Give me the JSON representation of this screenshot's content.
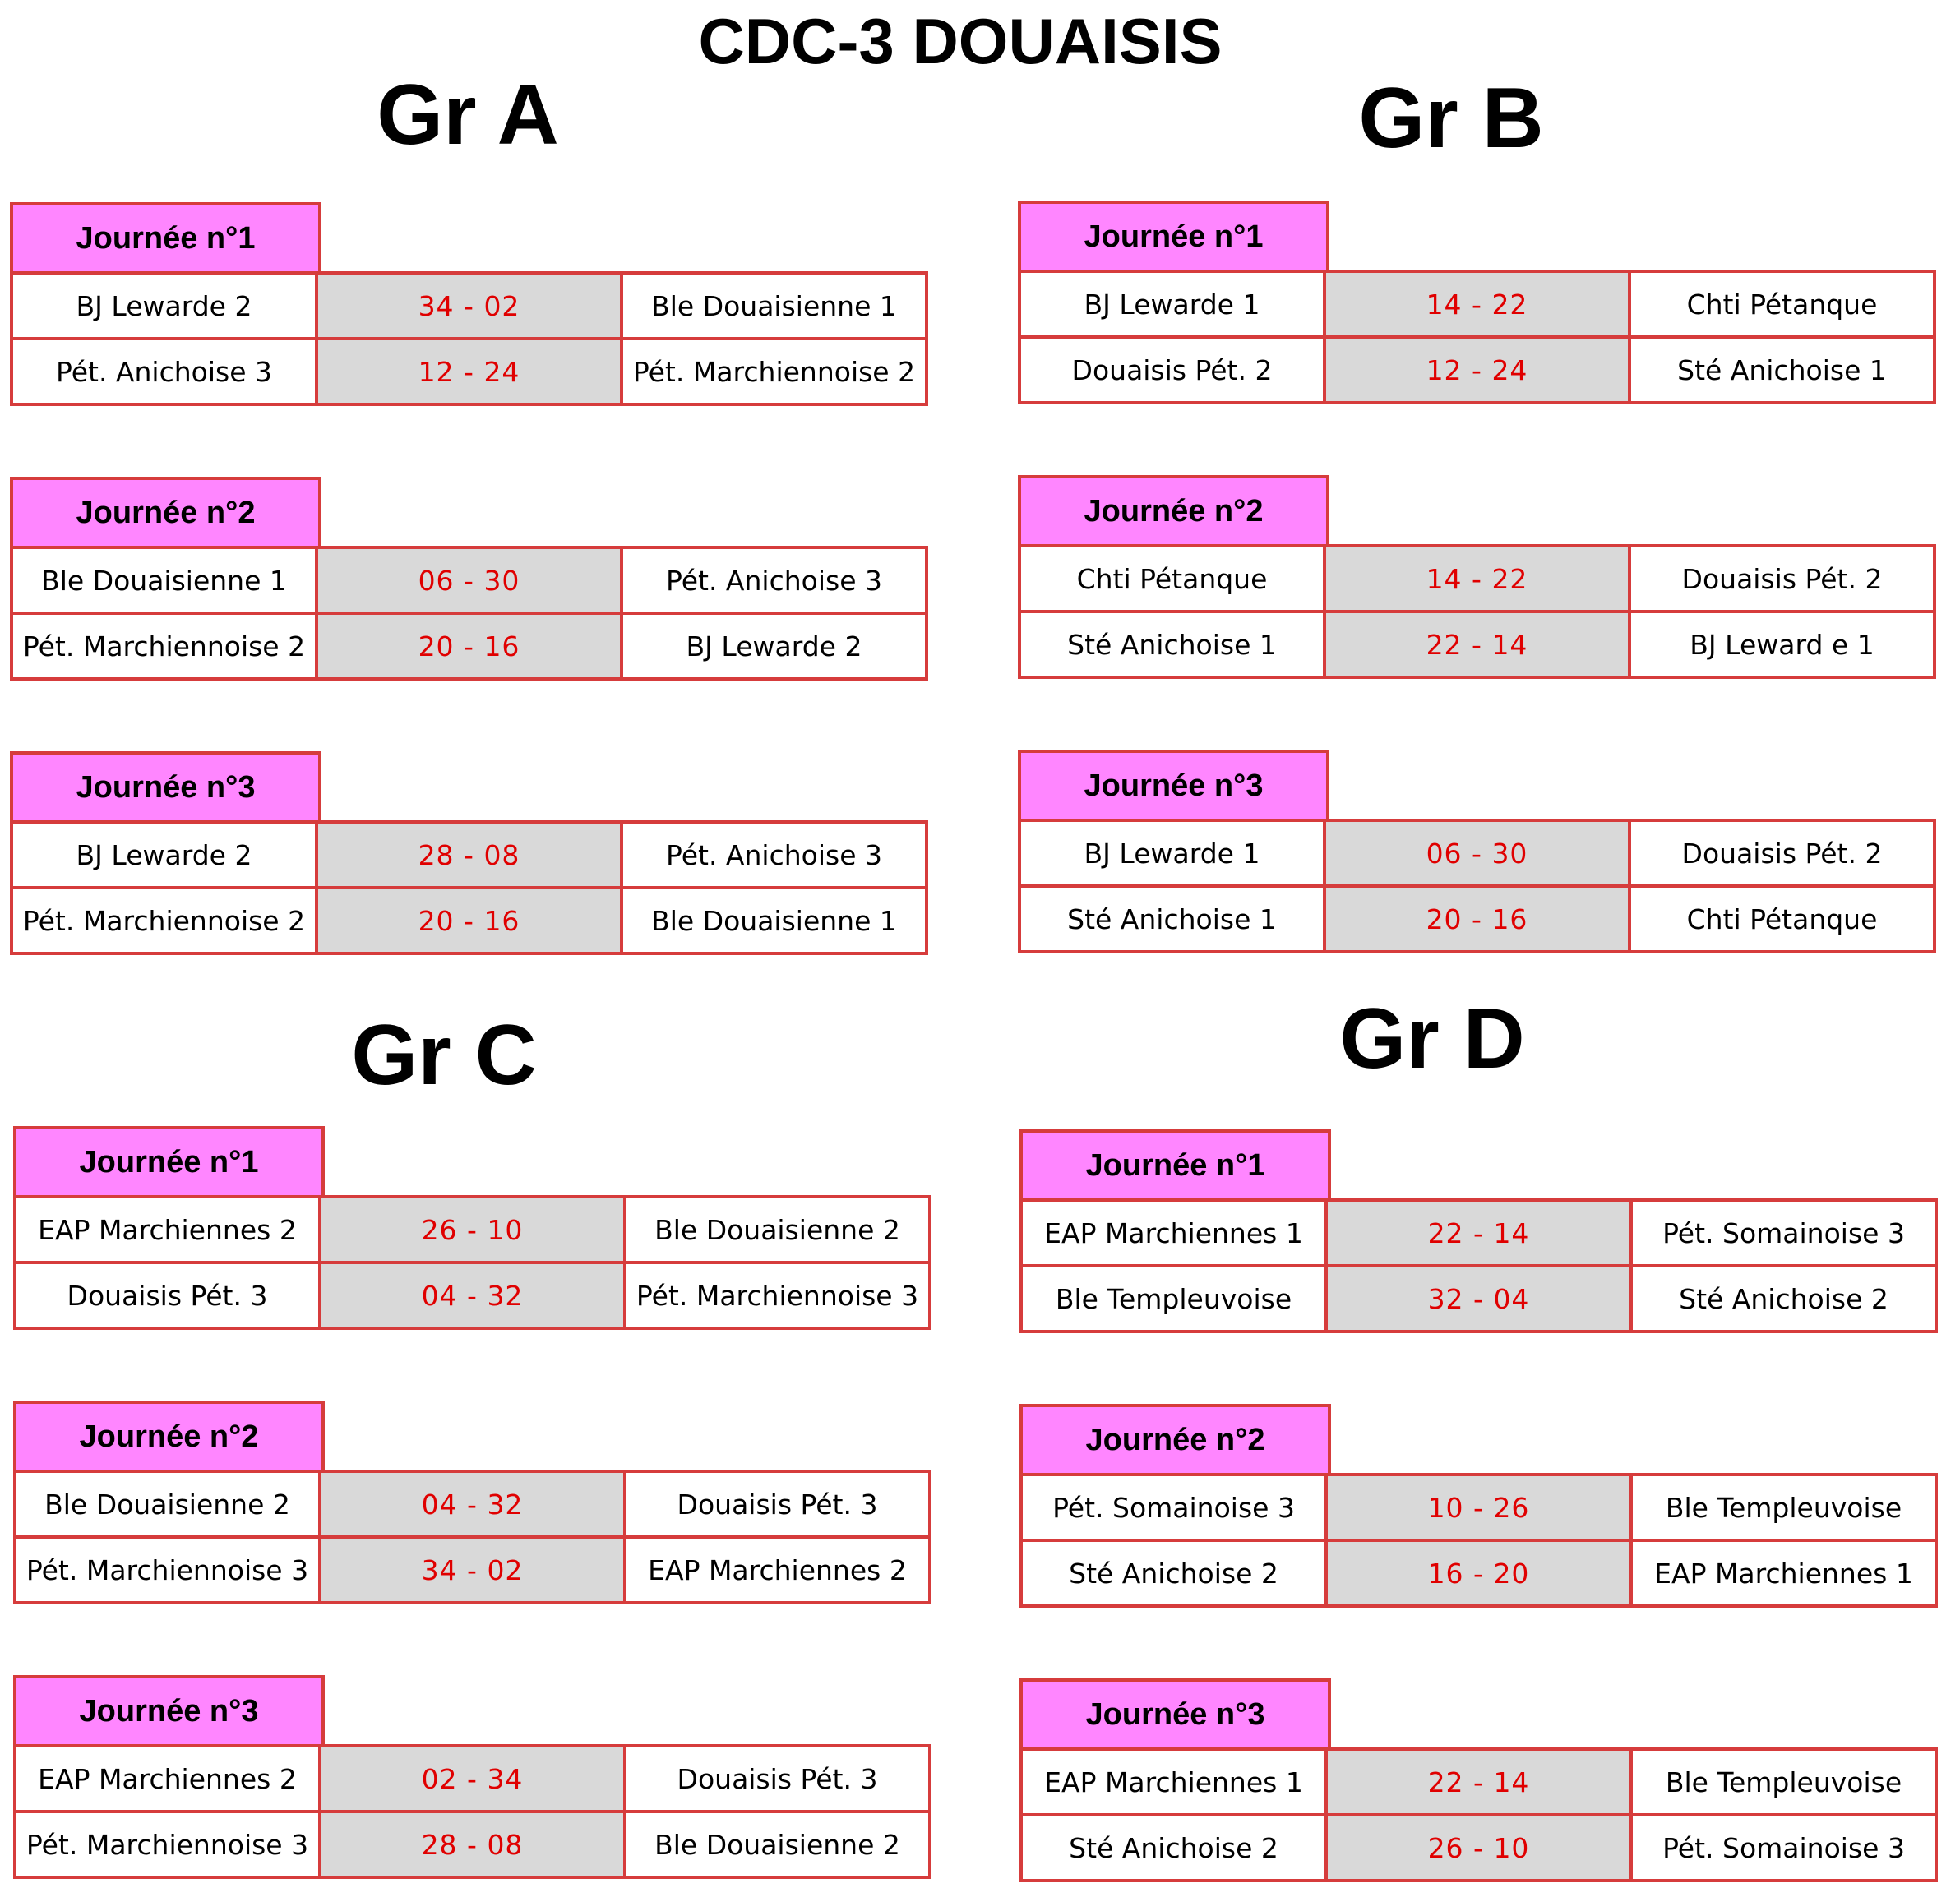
{
  "title": "CDC-3 DOUAISIS",
  "groups": [
    {
      "name": "Gr A",
      "days": [
        {
          "label": "Journée n°1",
          "matches": [
            {
              "home": "BJ Lewarde 2",
              "score": "34  -  02",
              "away": "Ble Douaisienne 1"
            },
            {
              "home": "Pét. Anichoise 3",
              "score": "12  -  24",
              "away": "Pét. Marchiennoise 2"
            }
          ]
        },
        {
          "label": "Journée n°2",
          "matches": [
            {
              "home": "Ble Douaisienne 1",
              "score": "06  -  30",
              "away": "Pét. Anichoise 3"
            },
            {
              "home": "Pét. Marchiennoise 2",
              "score": "20  -  16",
              "away": "BJ Lewarde 2"
            }
          ]
        },
        {
          "label": "Journée n°3",
          "matches": [
            {
              "home": "BJ Lewarde 2",
              "score": "28  -  08",
              "away": "Pét. Anichoise 3"
            },
            {
              "home": "Pét. Marchiennoise 2",
              "score": "20  -  16",
              "away": "Ble Douaisienne 1"
            }
          ]
        }
      ]
    },
    {
      "name": "Gr B",
      "days": [
        {
          "label": "Journée n°1",
          "matches": [
            {
              "home": "BJ Lewarde 1",
              "score": "14  -  22",
              "away": "Chti Pétanque"
            },
            {
              "home": "Douaisis Pét. 2",
              "score": "12  -  24",
              "away": "Sté Anichoise 1"
            }
          ]
        },
        {
          "label": "Journée n°2",
          "matches": [
            {
              "home": "Chti Pétanque",
              "score": "14  -  22",
              "away": "Douaisis Pét. 2"
            },
            {
              "home": "Sté Anichoise 1",
              "score": "22  -  14",
              "away": "BJ Leward e 1"
            }
          ]
        },
        {
          "label": "Journée n°3",
          "matches": [
            {
              "home": "BJ Lewarde 1",
              "score": "06  -  30",
              "away": "Douaisis Pét. 2"
            },
            {
              "home": "Sté Anichoise 1",
              "score": "20  -  16",
              "away": "Chti Pétanque"
            }
          ]
        }
      ]
    },
    {
      "name": "Gr C",
      "days": [
        {
          "label": "Journée n°1",
          "matches": [
            {
              "home": "EAP Marchiennes 2",
              "score": "26  -  10",
              "away": "Ble Douaisienne 2"
            },
            {
              "home": "Douaisis Pét. 3",
              "score": "04  -  32",
              "away": "Pét. Marchiennoise 3"
            }
          ]
        },
        {
          "label": "Journée n°2",
          "matches": [
            {
              "home": "Ble Douaisienne 2",
              "score": "04  -  32",
              "away": "Douaisis Pét. 3"
            },
            {
              "home": "Pét. Marchiennoise 3",
              "score": "34  -  02",
              "away": "EAP Marchiennes 2"
            }
          ]
        },
        {
          "label": "Journée n°3",
          "matches": [
            {
              "home": "EAP Marchiennes 2",
              "score": "02  -  34",
              "away": "Douaisis Pét. 3"
            },
            {
              "home": "Pét. Marchiennoise 3",
              "score": "28  -  08",
              "away": "Ble Douaisienne 2"
            }
          ]
        }
      ]
    },
    {
      "name": "Gr D",
      "days": [
        {
          "label": "Journée n°1",
          "matches": [
            {
              "home": "EAP Marchiennes 1",
              "score": "22  -  14",
              "away": "Pét. Somainoise 3"
            },
            {
              "home": "Ble Templeuvoise",
              "score": "32  -  04",
              "away": "Sté Anichoise 2"
            }
          ]
        },
        {
          "label": "Journée n°2",
          "matches": [
            {
              "home": "Pét. Somainoise 3",
              "score": "10  -  26",
              "away": "Ble Templeuvoise"
            },
            {
              "home": "Sté Anichoise 2",
              "score": "16  -  20",
              "away": "EAP Marchiennes 1"
            }
          ]
        },
        {
          "label": "Journée n°3",
          "matches": [
            {
              "home": "EAP Marchiennes 1",
              "score": "22  -  14",
              "away": "Ble Templeuvoise"
            },
            {
              "home": "Sté Anichoise 2",
              "score": "26  -  10",
              "away": "Pét. Somainoise 3"
            }
          ]
        }
      ]
    }
  ]
}
